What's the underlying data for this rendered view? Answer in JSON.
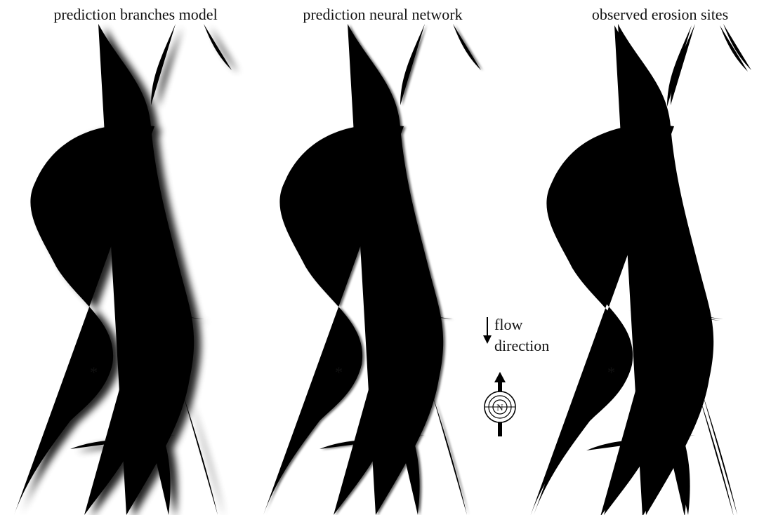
{
  "panels": [
    {
      "title": "prediction branches model",
      "marker": "*"
    },
    {
      "title": "prediction neural network",
      "marker": "*"
    },
    {
      "title": "observed erosion sites",
      "marker": "*"
    }
  ],
  "legend": {
    "flow_lines": [
      "flow",
      "direction"
    ],
    "north_label": "N"
  }
}
